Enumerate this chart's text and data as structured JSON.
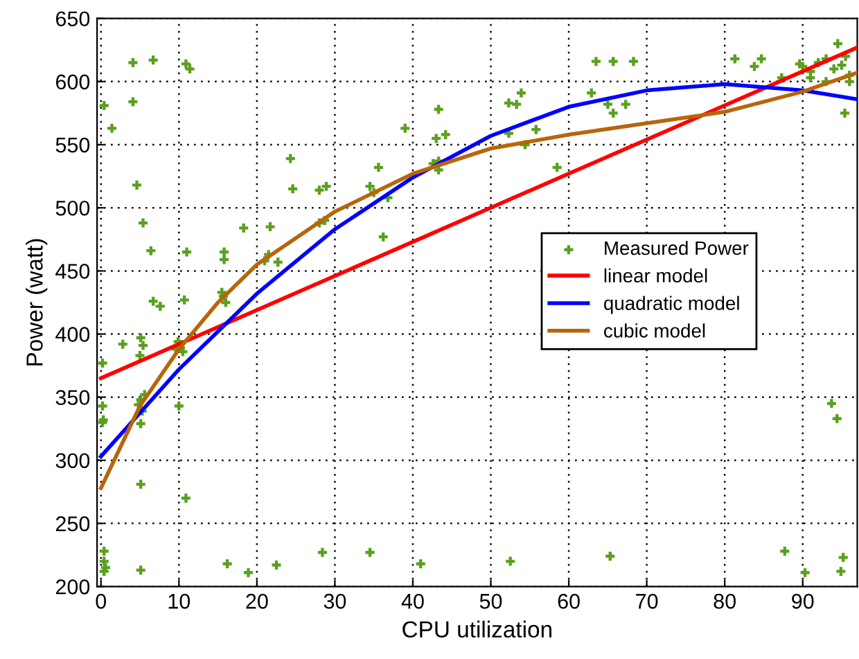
{
  "chart_data": {
    "type": "scatter",
    "xlabel": "CPU utilization",
    "ylabel": "Power (watt)",
    "xlim": [
      -0.5,
      97
    ],
    "ylim": [
      200,
      650
    ],
    "xticks": [
      0,
      10,
      20,
      30,
      40,
      50,
      60,
      70,
      80,
      90
    ],
    "yticks": [
      200,
      250,
      300,
      350,
      400,
      450,
      500,
      550,
      600,
      650
    ],
    "grid": true,
    "legend": "center right",
    "series": [
      {
        "name": "Measured Power",
        "marker": "cross",
        "color": "#5aa01e",
        "x": [
          0.2,
          0.2,
          0.3,
          0.2,
          2.8,
          5.1,
          5.4,
          5,
          5.1,
          5.3,
          5.1,
          4.8,
          5.6,
          10,
          9.9,
          10.2,
          9.6,
          10.5,
          5.1,
          10.9,
          0.4,
          0.4,
          0.4,
          0.6,
          5.1,
          16.2,
          18.9,
          22.5,
          28.4,
          34.5,
          0.4,
          1.4,
          4.1,
          6.7,
          4.1,
          10.9,
          11.4,
          4.6,
          5.4,
          6.4,
          6.7,
          7.6,
          10.7,
          11,
          15.8,
          15.8,
          18.3,
          21.7,
          24.3,
          24.6,
          28,
          28.9,
          36.2,
          35.6,
          15.7,
          15.5,
          16,
          21.5,
          21,
          22.7,
          28,
          28.7,
          34.5,
          35,
          36.8,
          42.6,
          43.3,
          39,
          43.3,
          43,
          44.2,
          43.3,
          52.3,
          53.9,
          52.3,
          53.3,
          55.8,
          54.4,
          58.5,
          63.5,
          65.7,
          68.3,
          65,
          62.9,
          67.3,
          65.7,
          81.3,
          84.7,
          83.8,
          89.6,
          87.3,
          90,
          91,
          92,
          93,
          94,
          95,
          96,
          95.5,
          96,
          93,
          91,
          94.5,
          95.4,
          93.7,
          94.4,
          41,
          52.5,
          65.3,
          87.7,
          90.3,
          94.9,
          95.2
        ],
        "values": [
          377,
          343,
          332,
          330,
          392,
          397,
          391,
          383,
          348,
          339,
          329,
          344,
          352,
          343,
          394,
          389,
          388,
          386,
          281,
          270,
          228,
          220,
          212,
          215,
          213,
          218,
          211,
          217,
          227,
          227,
          581,
          563,
          615,
          617,
          584,
          614,
          610,
          518,
          488,
          466,
          426,
          422,
          427,
          465,
          465,
          459,
          484,
          485,
          539,
          515,
          514,
          517,
          477,
          532,
          430,
          433,
          425,
          463,
          458,
          457,
          488,
          490,
          517,
          512,
          508,
          535,
          530,
          563,
          578,
          555,
          558,
          537,
          559,
          591,
          583,
          582,
          562,
          550,
          532,
          616,
          616,
          616,
          582,
          591,
          582,
          575,
          618,
          618,
          612,
          614,
          603,
          612,
          608,
          615,
          618,
          610,
          613,
          605,
          620,
          600,
          600,
          603,
          630,
          575,
          345,
          333,
          218,
          220,
          224,
          228,
          211,
          212,
          223
        ]
      },
      {
        "name": "linear model",
        "type": "line",
        "line_style": "solid",
        "color": "#ff0000",
        "x": [
          0,
          97
        ],
        "values": [
          365,
          627
        ]
      },
      {
        "name": "quadratic model",
        "type": "line",
        "line_style": "solid",
        "color": "#0000ff",
        "x": [
          0,
          10,
          20,
          30,
          40,
          50,
          60,
          70,
          80,
          90,
          97
        ],
        "values": [
          303,
          372,
          432,
          483,
          524,
          557,
          580,
          593,
          598,
          593,
          586
        ]
      },
      {
        "name": "cubic model",
        "type": "line",
        "line_style": "solid",
        "color": "#b8650a",
        "x": [
          0,
          5,
          10,
          15,
          20,
          30,
          40,
          50,
          60,
          70,
          80,
          90,
          97
        ],
        "values": [
          278,
          343,
          388,
          425,
          455,
          497,
          527,
          547,
          558,
          567,
          576,
          592,
          607
        ]
      }
    ]
  }
}
